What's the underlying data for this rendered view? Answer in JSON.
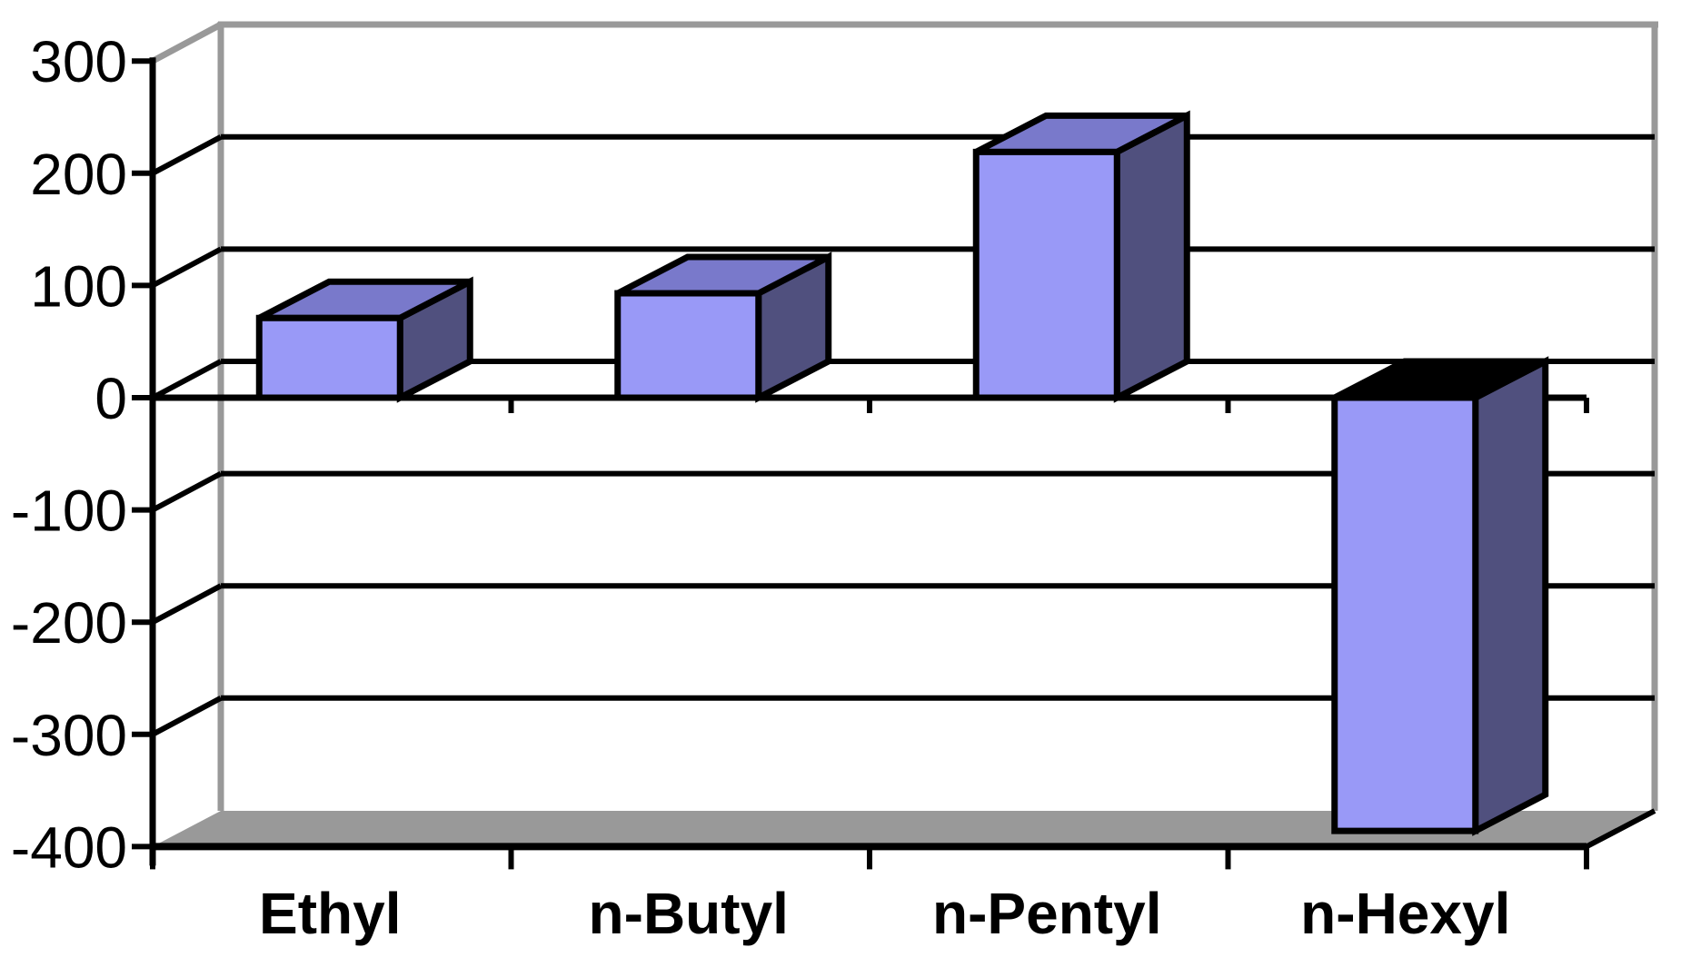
{
  "chart_data": {
    "type": "bar",
    "style": "3d-column",
    "title": "",
    "xlabel": "",
    "ylabel": "",
    "categories": [
      "Ethyl",
      "n-Butyl",
      "n-Pentyl",
      "n-Hexyl"
    ],
    "values": [
      71,
      93,
      219,
      -386
    ],
    "ylim": [
      -400,
      300
    ],
    "ytick_step": 100,
    "yticks": [
      300,
      200,
      100,
      0,
      -100,
      -200,
      -300,
      -400
    ],
    "ytick_labels": [
      "300",
      "200",
      "100",
      "0",
      "-100",
      "-200",
      "-300",
      "-400"
    ],
    "grid": "horizontal-back-wall",
    "legend": "none",
    "series_count": 1
  },
  "colors": {
    "bar_front": "#9999F7",
    "bar_top": "#7979CB",
    "bar_side": "#50507E",
    "bar_negative_top": "#000000",
    "outline": "#000000",
    "gridline": "#000000",
    "axis": "#000000",
    "wall_edge": "#999999",
    "floor": "#999999",
    "text": "#000000",
    "background": "#FFFFFF"
  }
}
